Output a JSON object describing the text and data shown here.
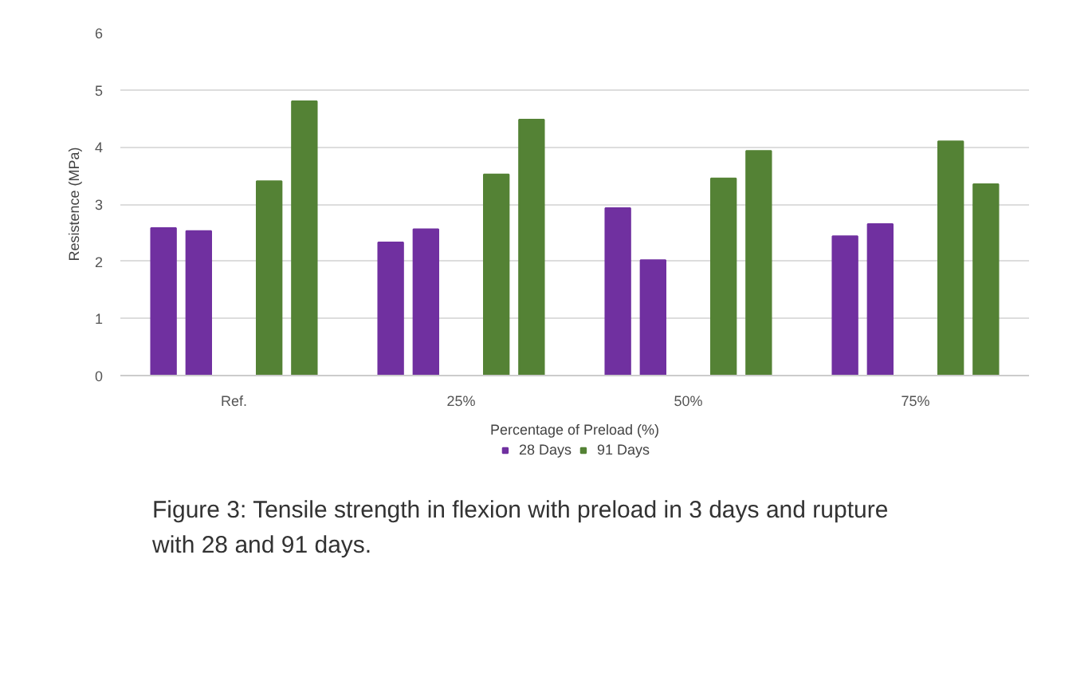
{
  "chart_data": {
    "type": "bar",
    "xlabel": "Percentage of Preload (%)",
    "ylabel": "Resistence (MPa)",
    "categories": [
      "Ref.",
      "25%",
      "50%",
      "75%"
    ],
    "series": [
      {
        "name": "28 Days",
        "color": "#7030a0",
        "values": [
          2.58,
          2.33,
          2.93,
          2.44
        ]
      },
      {
        "color": "#7030a0",
        "values": [
          2.53,
          2.56,
          2.02,
          2.65
        ]
      },
      {
        "name": "91 Days",
        "color": "#548235",
        "values": [
          3.4,
          3.52,
          3.45,
          4.1
        ]
      },
      {
        "color": "#548235",
        "values": [
          4.8,
          4.48,
          3.93,
          3.35
        ]
      }
    ],
    "ylim": [
      0,
      6
    ],
    "yticks": [
      0,
      1,
      2,
      3,
      4,
      5,
      6
    ],
    "grid": "y",
    "legend": "bottom",
    "annotations": [
      "Figure 3: Tensile strength in flexion with preload in 3 days and rupture with 28 and 91 days."
    ]
  }
}
